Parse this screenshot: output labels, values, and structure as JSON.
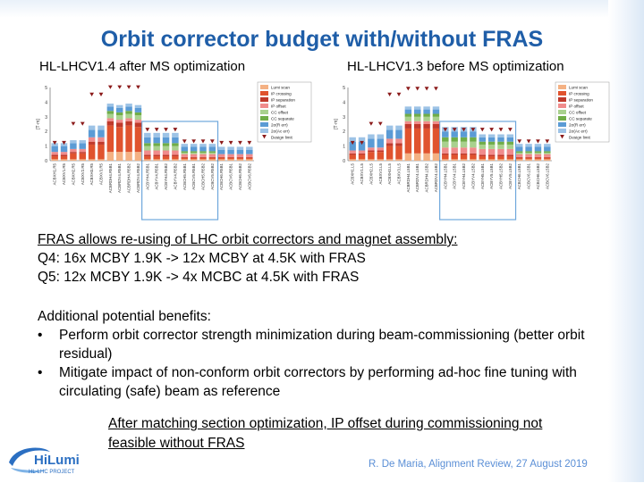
{
  "slide": {
    "title": "Orbit corrector budget with/without FRAS",
    "subtitle_left": "HL-LHCV1.4 after MS optimization",
    "subtitle_right": "HL-LHCV1.3 before MS optimization"
  },
  "body": {
    "line1": "FRAS allows re-using of LHC orbit correctors and magnet assembly:",
    "line2": "Q4: 16x MCBY 1.9K -> 12x MCBY at 4.5K with FRAS",
    "line3": "Q5: 12x MCBY 1.9K -> 4x MCBC at 4.5K with FRAS",
    "benefits_title": "Additional potential benefits:",
    "bullet_symbol": "•",
    "bullet1": "Perform orbit corrector strength minimization during beam-commissioning (better orbit residual)",
    "bullet2": "Mitigate impact of non-conform orbit correctors by performing ad-hoc fine tuning with circulating (safe) beam as reference",
    "conclusion": "After matching section optimization, IP offset during commissioning not feasible without FRAS"
  },
  "footer": {
    "credit": "R. De Maria, Alignment Review, 27 August 2019"
  },
  "logo": {
    "text_main": "HiLumi",
    "text_sub": "HL-LHC PROJECT"
  },
  "chart_colors": {
    "lumi_scan": "#f4b183",
    "ip_crossing": "#e0532e",
    "ip_separation": "#c0392b",
    "ip_offset": "#f08c8c",
    "cc_offset": "#a9d18e",
    "cc_separate": "#70ad47",
    "rel_err": "#5b9bd5",
    "abs_err": "#9dc3e6",
    "limit": "#8b1a1a",
    "highlight": "#6fa8dc"
  },
  "chart_data": [
    {
      "type": "bar",
      "stacked": true,
      "ylim": [
        0,
        5
      ],
      "yticks": [
        "0",
        "1",
        "2",
        "3",
        "4",
        "5"
      ],
      "ylabel": "[T·m]",
      "categories": [
        "ACBXH1.R5",
        "ACBXV1.R5",
        "ACBXH2.R5",
        "ACBXV2.R5",
        "ACBXH3.R5",
        "ACBXV3.R5",
        "ACBRDH4.R5B1",
        "ACBRDV4.R5B1",
        "ACBRDH4.R5B2",
        "ACBRDV4.R5B2",
        "ACBYH4.R5B1",
        "ACBYV4.R5B1",
        "ACBYH4.R5B2",
        "ACBYV4.R5B2",
        "ACBCH5.R5B1",
        "ACBCV5.R5B1",
        "ACBCH5.R5B2",
        "ACBCV5.R5B2",
        "ACBCH6.R5B1",
        "ACBCV6.R5B1",
        "ACBCH6.R5B2",
        "ACBCV6.R5B2"
      ],
      "series": [
        {
          "name": "Lumi scan",
          "values": [
            0.1,
            0.1,
            0.1,
            0.1,
            0.1,
            0.1,
            0.6,
            0.6,
            0.6,
            0.6,
            0.1,
            0.1,
            0.1,
            0.1,
            0.1,
            0.1,
            0.1,
            0.1,
            0.1,
            0.1,
            0.1,
            0.1
          ]
        },
        {
          "name": "IP crossing",
          "values": [
            0.2,
            0.2,
            0.4,
            0.4,
            1.0,
            1.0,
            1.8,
            1.7,
            1.8,
            1.7,
            0.2,
            0.2,
            0.2,
            0.2,
            0.1,
            0.1,
            0.1,
            0.1,
            0.1,
            0.1,
            0.1,
            0.1
          ]
        },
        {
          "name": "IP separation",
          "values": [
            0.1,
            0.1,
            0.1,
            0.1,
            0.2,
            0.2,
            0.3,
            0.3,
            0.3,
            0.3,
            0.1,
            0.1,
            0.1,
            0.1,
            0.05,
            0.05,
            0.05,
            0.05,
            0.05,
            0.05,
            0.05,
            0.05
          ]
        },
        {
          "name": "IP offset",
          "values": [
            0.2,
            0.2,
            0.2,
            0.2,
            0.3,
            0.3,
            0.2,
            0.2,
            0.2,
            0.2,
            0.3,
            0.3,
            0.3,
            0.3,
            0.2,
            0.2,
            0.2,
            0.2,
            0.2,
            0.2,
            0.2,
            0.2
          ]
        },
        {
          "name": "CC offset",
          "values": [
            0.0,
            0.0,
            0.0,
            0.0,
            0.0,
            0.0,
            0.3,
            0.3,
            0.3,
            0.3,
            0.3,
            0.3,
            0.3,
            0.3,
            0.1,
            0.1,
            0.1,
            0.1,
            0.0,
            0.0,
            0.0,
            0.0
          ]
        },
        {
          "name": "CC separate",
          "values": [
            0.0,
            0.0,
            0.0,
            0.0,
            0.0,
            0.0,
            0.2,
            0.2,
            0.2,
            0.2,
            0.2,
            0.2,
            0.2,
            0.2,
            0.1,
            0.1,
            0.1,
            0.1,
            0.0,
            0.0,
            0.0,
            0.0
          ]
        },
        {
          "name": "2σ(R err)",
          "values": [
            0.4,
            0.4,
            0.4,
            0.4,
            0.5,
            0.5,
            0.3,
            0.3,
            0.3,
            0.3,
            0.4,
            0.4,
            0.4,
            0.4,
            0.3,
            0.3,
            0.3,
            0.3,
            0.3,
            0.3,
            0.3,
            0.3
          ]
        },
        {
          "name": "2σ(Ac err)",
          "values": [
            0.2,
            0.2,
            0.2,
            0.2,
            0.3,
            0.3,
            0.2,
            0.2,
            0.2,
            0.2,
            0.3,
            0.3,
            0.3,
            0.3,
            0.2,
            0.2,
            0.2,
            0.2,
            0.2,
            0.2,
            0.2,
            0.2
          ]
        }
      ],
      "limits": [
        1.2,
        1.2,
        2.5,
        2.5,
        4.5,
        4.5,
        5.0,
        5.0,
        5.0,
        5.0,
        2.1,
        2.1,
        2.1,
        2.1,
        1.3,
        1.3,
        1.3,
        1.3,
        1.2,
        1.2,
        1.2,
        1.2
      ],
      "highlight_ranges": [
        [
          10,
          17
        ]
      ],
      "legend": {
        "position": "top-right",
        "entries": [
          "Lumi scan",
          "IP crossing",
          "IP separation",
          "IP offset",
          "CC offset",
          "CC separate",
          "2σ(R err)",
          "2σ(Ac err)",
          "Design limit"
        ]
      }
    },
    {
      "type": "bar",
      "stacked": true,
      "ylim": [
        0,
        5
      ],
      "yticks": [
        "0",
        "1",
        "2",
        "3",
        "4",
        "5"
      ],
      "ylabel": "[T·m]",
      "categories": [
        "ACBXH1.L5",
        "ACBXV1.L5",
        "ACBXH2.L5",
        "ACBXV2.L5",
        "ACBXH3.L5",
        "ACBXV3.L5",
        "ACBRDH4.L5B1",
        "ACBRDV4.L5B1",
        "ACBRDH4.L5B2",
        "ACBRDV4.L5B2",
        "ACBYH4.L5B1",
        "ACBYV4.L5B1",
        "ACBYH4.L5B2",
        "ACBYV4.L5B2",
        "ACBYH5.L5B1",
        "ACBYV5.L5B1",
        "ACBYH5.L5B2",
        "ACBYV5.L5B2",
        "ACBCH6.L5B1",
        "ACBCV6.L5B1",
        "ACBCH6.L5B2",
        "ACBCV6.L5B2"
      ],
      "series": [
        {
          "name": "Lumi scan",
          "values": [
            0.1,
            0.1,
            0.1,
            0.1,
            0.1,
            0.1,
            0.5,
            0.5,
            0.5,
            0.5,
            0.1,
            0.1,
            0.1,
            0.1,
            0.1,
            0.1,
            0.1,
            0.1,
            0.1,
            0.1,
            0.1,
            0.1
          ]
        },
        {
          "name": "IP crossing",
          "values": [
            0.3,
            0.3,
            0.5,
            0.5,
            0.9,
            0.9,
            1.7,
            1.7,
            1.7,
            1.7,
            0.3,
            0.3,
            0.3,
            0.3,
            0.2,
            0.2,
            0.2,
            0.2,
            0.1,
            0.1,
            0.1,
            0.1
          ]
        },
        {
          "name": "IP separation",
          "values": [
            0.1,
            0.1,
            0.1,
            0.1,
            0.2,
            0.2,
            0.3,
            0.3,
            0.3,
            0.3,
            0.1,
            0.1,
            0.1,
            0.1,
            0.1,
            0.1,
            0.1,
            0.1,
            0.05,
            0.05,
            0.05,
            0.05
          ]
        },
        {
          "name": "IP offset",
          "values": [
            0.2,
            0.2,
            0.2,
            0.2,
            0.3,
            0.3,
            0.2,
            0.2,
            0.2,
            0.2,
            0.4,
            0.4,
            0.4,
            0.4,
            0.4,
            0.4,
            0.4,
            0.4,
            0.2,
            0.2,
            0.2,
            0.2
          ]
        },
        {
          "name": "CC offset",
          "values": [
            0.0,
            0.0,
            0.0,
            0.0,
            0.0,
            0.0,
            0.3,
            0.3,
            0.3,
            0.3,
            0.4,
            0.4,
            0.4,
            0.4,
            0.3,
            0.3,
            0.3,
            0.3,
            0.1,
            0.1,
            0.1,
            0.1
          ]
        },
        {
          "name": "CC separate",
          "values": [
            0.0,
            0.0,
            0.0,
            0.0,
            0.0,
            0.0,
            0.2,
            0.2,
            0.2,
            0.2,
            0.3,
            0.3,
            0.3,
            0.3,
            0.2,
            0.2,
            0.2,
            0.2,
            0.1,
            0.1,
            0.1,
            0.1
          ]
        },
        {
          "name": "2σ(R err)",
          "values": [
            0.6,
            0.6,
            0.6,
            0.6,
            0.6,
            0.6,
            0.3,
            0.3,
            0.3,
            0.3,
            0.4,
            0.4,
            0.4,
            0.4,
            0.3,
            0.3,
            0.3,
            0.3,
            0.3,
            0.3,
            0.3,
            0.3
          ]
        },
        {
          "name": "2σ(Ac err)",
          "values": [
            0.3,
            0.3,
            0.3,
            0.3,
            0.3,
            0.3,
            0.2,
            0.2,
            0.2,
            0.2,
            0.3,
            0.3,
            0.3,
            0.3,
            0.2,
            0.2,
            0.2,
            0.2,
            0.2,
            0.2,
            0.2,
            0.2
          ]
        }
      ],
      "limits": [
        1.2,
        1.2,
        2.5,
        2.5,
        4.5,
        4.5,
        4.9,
        4.9,
        4.9,
        4.9,
        2.1,
        2.1,
        2.1,
        2.1,
        2.1,
        2.1,
        2.1,
        2.1,
        1.3,
        1.3,
        1.3,
        1.3
      ],
      "highlight_ranges": [
        [
          10,
          17
        ]
      ],
      "legend": {
        "position": "top-right",
        "entries": [
          "Lumi scan",
          "IP crossing",
          "IP separation",
          "IP offset",
          "CC offset",
          "CC separate",
          "2σ(R err)",
          "2σ(Ac err)",
          "Design limit"
        ]
      }
    }
  ]
}
